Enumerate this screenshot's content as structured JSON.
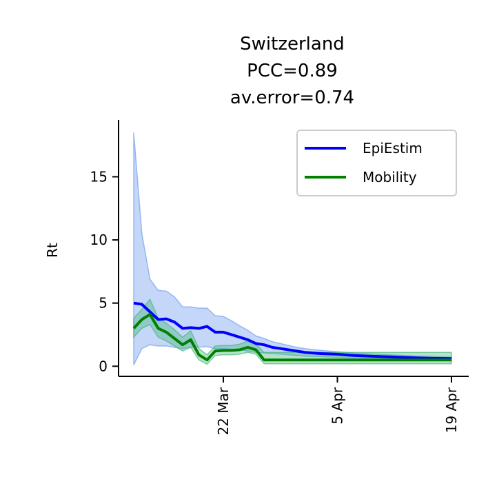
{
  "chart_data": {
    "type": "line",
    "title_lines": [
      "Switzerland",
      "PCC=0.89",
      "av.error=0.74"
    ],
    "xlabel": "",
    "ylabel": "Rt",
    "x_start": "2020-03-11",
    "x_end": "2020-04-19",
    "xticks": [
      {
        "date": "2020-03-22",
        "label": "22 Mar"
      },
      {
        "date": "2020-04-05",
        "label": "5 Apr"
      },
      {
        "date": "2020-04-19",
        "label": "19 Apr"
      }
    ],
    "ylim": [
      -0.8,
      19.5
    ],
    "yticks": [
      0,
      5,
      10,
      15
    ],
    "grid": false,
    "legend_position": "top-right",
    "series": [
      {
        "name": "EpiEstim",
        "color": "#0000ff",
        "band_color": "#6495ed",
        "x": [
          "2020-03-11",
          "2020-03-12",
          "2020-03-13",
          "2020-03-14",
          "2020-03-15",
          "2020-03-16",
          "2020-03-17",
          "2020-03-18",
          "2020-03-19",
          "2020-03-20",
          "2020-03-21",
          "2020-03-22",
          "2020-03-23",
          "2020-03-24",
          "2020-03-25",
          "2020-03-26",
          "2020-03-27",
          "2020-03-28",
          "2020-03-29",
          "2020-03-30",
          "2020-03-31",
          "2020-04-01",
          "2020-04-03",
          "2020-04-05",
          "2020-04-07",
          "2020-04-09",
          "2020-04-11",
          "2020-04-13",
          "2020-04-15",
          "2020-04-17",
          "2020-04-19"
        ],
        "values": [
          5.0,
          4.9,
          4.3,
          3.7,
          3.75,
          3.5,
          3.0,
          3.05,
          3.0,
          3.15,
          2.7,
          2.7,
          2.5,
          2.3,
          2.1,
          1.8,
          1.7,
          1.5,
          1.4,
          1.3,
          1.2,
          1.1,
          1.0,
          0.95,
          0.85,
          0.8,
          0.75,
          0.7,
          0.65,
          0.62,
          0.6
        ],
        "lower": [
          0.1,
          1.4,
          1.7,
          1.6,
          1.6,
          1.5,
          1.4,
          1.5,
          1.5,
          1.55,
          1.4,
          1.4,
          1.35,
          1.3,
          1.2,
          1.1,
          1.05,
          1.0,
          0.95,
          0.9,
          0.85,
          0.8,
          0.75,
          0.7,
          0.65,
          0.6,
          0.58,
          0.55,
          0.52,
          0.5,
          0.48
        ],
        "upper": [
          18.5,
          10.5,
          6.9,
          6.0,
          5.95,
          5.5,
          4.7,
          4.7,
          4.6,
          4.6,
          4.0,
          3.95,
          3.6,
          3.2,
          2.85,
          2.4,
          2.2,
          1.95,
          1.8,
          1.65,
          1.5,
          1.4,
          1.25,
          1.15,
          1.05,
          0.98,
          0.92,
          0.85,
          0.8,
          0.76,
          0.72
        ]
      },
      {
        "name": "Mobility",
        "color": "#008000",
        "band_color": "#3cb371",
        "x": [
          "2020-03-11",
          "2020-03-12",
          "2020-03-13",
          "2020-03-14",
          "2020-03-15",
          "2020-03-16",
          "2020-03-17",
          "2020-03-18",
          "2020-03-19",
          "2020-03-20",
          "2020-03-21",
          "2020-03-22",
          "2020-03-23",
          "2020-03-24",
          "2020-03-25",
          "2020-03-26",
          "2020-03-27",
          "2020-03-28",
          "2020-03-29",
          "2020-03-30",
          "2020-03-31",
          "2020-04-01",
          "2020-04-03",
          "2020-04-05",
          "2020-04-07",
          "2020-04-09",
          "2020-04-11",
          "2020-04-13",
          "2020-04-15",
          "2020-04-17",
          "2020-04-19"
        ],
        "values": [
          3.0,
          3.7,
          4.1,
          3.0,
          2.7,
          2.2,
          1.7,
          2.1,
          0.9,
          0.5,
          1.2,
          1.25,
          1.25,
          1.3,
          1.5,
          1.3,
          0.5,
          0.5,
          0.5,
          0.5,
          0.5,
          0.5,
          0.5,
          0.5,
          0.5,
          0.5,
          0.5,
          0.5,
          0.5,
          0.5,
          0.5
        ],
        "lower": [
          2.3,
          3.0,
          3.3,
          2.3,
          2.0,
          1.6,
          1.2,
          1.5,
          0.5,
          0.15,
          0.85,
          0.9,
          0.9,
          0.95,
          1.1,
          0.95,
          0.2,
          0.2,
          0.2,
          0.2,
          0.2,
          0.2,
          0.2,
          0.2,
          0.2,
          0.2,
          0.2,
          0.2,
          0.2,
          0.2,
          0.2
        ],
        "upper": [
          3.8,
          4.5,
          5.3,
          3.8,
          3.4,
          2.9,
          2.3,
          2.8,
          1.4,
          0.9,
          1.6,
          1.65,
          1.65,
          1.75,
          2.0,
          1.75,
          1.1,
          1.1,
          1.1,
          1.1,
          1.1,
          1.1,
          1.1,
          1.1,
          1.1,
          1.1,
          1.1,
          1.1,
          1.1,
          1.1,
          1.1
        ]
      }
    ]
  }
}
